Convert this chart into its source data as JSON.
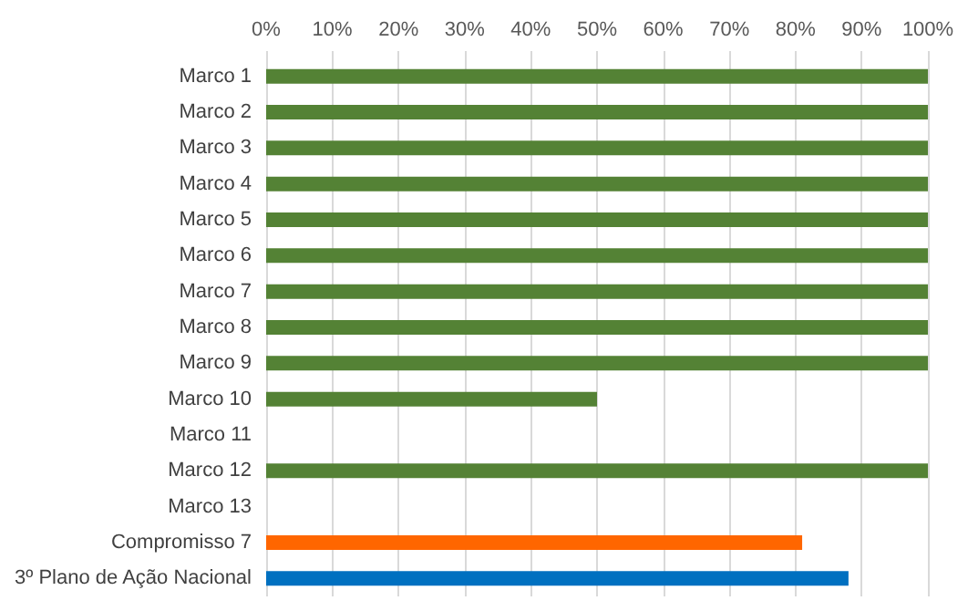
{
  "chart_data": {
    "type": "bar",
    "orientation": "horizontal",
    "categories": [
      "Marco 1",
      "Marco 2",
      "Marco 3",
      "Marco 4",
      "Marco 5",
      "Marco 6",
      "Marco 7",
      "Marco 8",
      "Marco 9",
      "Marco 10",
      "Marco 11",
      "Marco 12",
      "Marco 13",
      "Compromisso 7",
      "3º Plano de Ação Nacional"
    ],
    "values": [
      100,
      100,
      100,
      100,
      100,
      100,
      100,
      100,
      100,
      50,
      0,
      100,
      0,
      81,
      88
    ],
    "colors": [
      "#548235",
      "#548235",
      "#548235",
      "#548235",
      "#548235",
      "#548235",
      "#548235",
      "#548235",
      "#548235",
      "#548235",
      "#548235",
      "#548235",
      "#548235",
      "#ff6600",
      "#0070c0"
    ],
    "xlim": [
      0,
      100
    ],
    "xticks": [
      {
        "value": 0,
        "label": "0%"
      },
      {
        "value": 10,
        "label": "10%"
      },
      {
        "value": 20,
        "label": "20%"
      },
      {
        "value": 30,
        "label": "30%"
      },
      {
        "value": 40,
        "label": "40%"
      },
      {
        "value": 50,
        "label": "50%"
      },
      {
        "value": 60,
        "label": "60%"
      },
      {
        "value": 70,
        "label": "70%"
      },
      {
        "value": 80,
        "label": "80%"
      },
      {
        "value": 90,
        "label": "90%"
      },
      {
        "value": 100,
        "label": "100%"
      }
    ],
    "grid": "x"
  }
}
